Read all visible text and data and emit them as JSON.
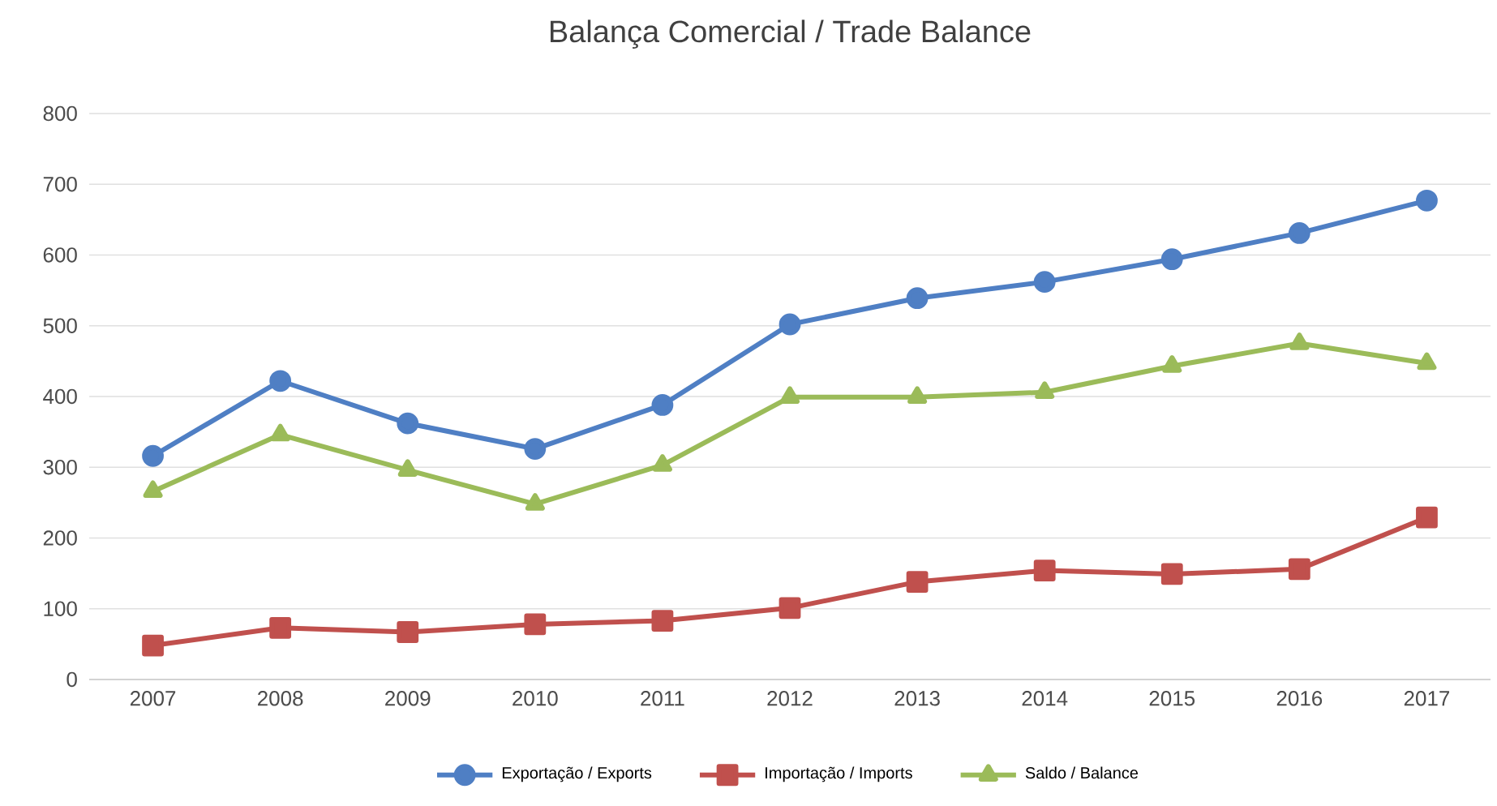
{
  "chart_data": {
    "type": "line",
    "title": "Balança Comercial / Trade Balance",
    "categories": [
      "2007",
      "2008",
      "2009",
      "2010",
      "2011",
      "2012",
      "2013",
      "2014",
      "2015",
      "2016",
      "2017"
    ],
    "series": [
      {
        "name": "Exportação / Exports",
        "color": "#4f7fc4",
        "marker": "circle",
        "values": [
          316,
          422,
          362,
          326,
          388,
          502,
          539,
          562,
          594,
          631,
          677
        ]
      },
      {
        "name": "Importação / Imports",
        "color": "#c0504d",
        "marker": "square",
        "values": [
          48,
          73,
          67,
          78,
          83,
          101,
          138,
          154,
          149,
          156,
          229
        ]
      },
      {
        "name": "Saldo / Balance",
        "color": "#9bbb59",
        "marker": "triangle",
        "values": [
          266,
          346,
          296,
          248,
          303,
          399,
          399,
          406,
          443,
          475,
          447
        ]
      }
    ],
    "ylim": [
      0,
      800
    ],
    "yticks": [
      0,
      100,
      200,
      300,
      400,
      500,
      600,
      700,
      800
    ],
    "grid": "y",
    "legend": "bottom",
    "line_style": "solid"
  }
}
